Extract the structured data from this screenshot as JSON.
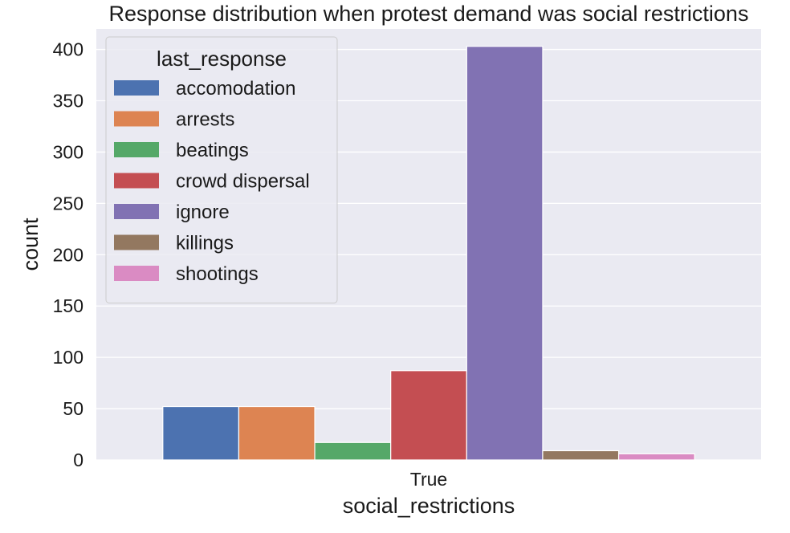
{
  "chart_data": {
    "type": "bar",
    "title": "Response distribution when protest demand was social restrictions",
    "xlabel": "social_restrictions",
    "ylabel": "count",
    "categories": [
      "True"
    ],
    "ylim": [
      0,
      420
    ],
    "yticks": [
      0,
      50,
      100,
      150,
      200,
      250,
      300,
      350,
      400
    ],
    "grid": true,
    "legend": {
      "title": "last_response",
      "placement": "top-left"
    },
    "series": [
      {
        "name": "accomodation",
        "color": "#4c72b0",
        "values": [
          52
        ]
      },
      {
        "name": "arrests",
        "color": "#dd8452",
        "values": [
          52
        ]
      },
      {
        "name": "beatings",
        "color": "#55a868",
        "values": [
          17
        ]
      },
      {
        "name": "crowd dispersal",
        "color": "#c44e52",
        "values": [
          87
        ]
      },
      {
        "name": "ignore",
        "color": "#8172b3",
        "values": [
          403
        ]
      },
      {
        "name": "killings",
        "color": "#937860",
        "values": [
          9
        ]
      },
      {
        "name": "shootings",
        "color": "#da8bc3",
        "values": [
          6
        ]
      }
    ]
  },
  "colors": {
    "plot_background": "#eaeaf2",
    "grid": "#ffffff"
  }
}
